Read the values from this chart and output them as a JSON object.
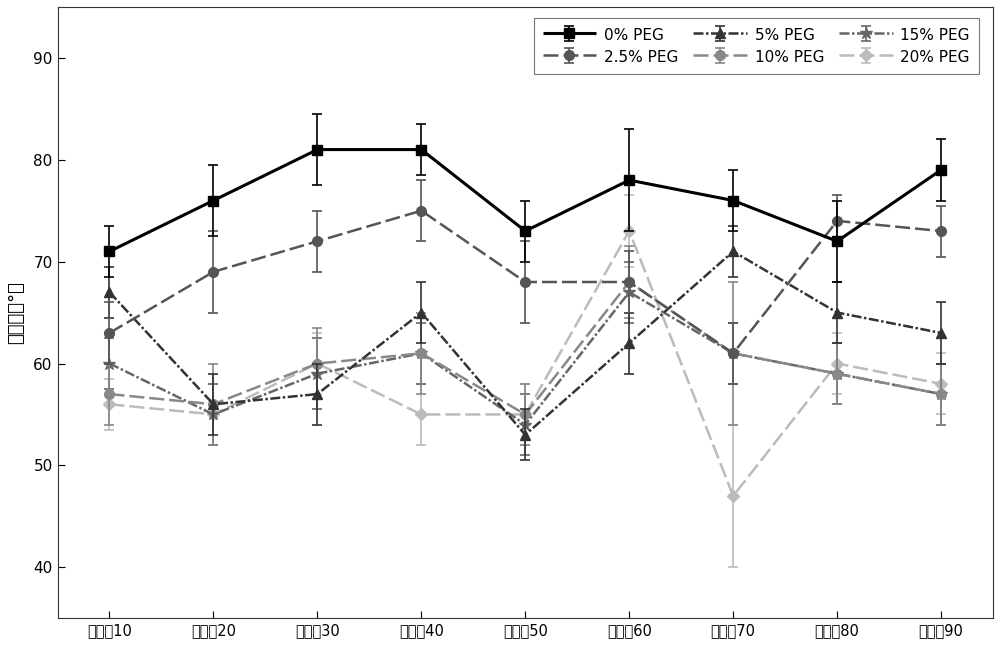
{
  "x_labels": [
    "乙烯基10",
    "乙烯基20",
    "乙烯基30",
    "乙烯基40",
    "乙烯基50",
    "乙烯基60",
    "乙烯基70",
    "乙烯基80",
    "乙烯基90"
  ],
  "x_values": [
    10,
    20,
    30,
    40,
    50,
    60,
    70,
    80,
    90
  ],
  "series": [
    {
      "label": "0% PEG",
      "color": "#000000",
      "linestyle": "solid",
      "marker": "s",
      "markersize": 7,
      "linewidth": 2.2,
      "y": [
        71,
        76,
        81,
        81,
        73,
        78,
        76,
        72,
        79
      ],
      "yerr": [
        2.5,
        3.5,
        3.5,
        2.5,
        3,
        5,
        3,
        4,
        3
      ]
    },
    {
      "label": "2.5% PEG",
      "color": "#555555",
      "linestyle": "dashed",
      "marker": "o",
      "markersize": 7,
      "linewidth": 1.8,
      "y": [
        63,
        69,
        72,
        75,
        68,
        68,
        61,
        74,
        73
      ],
      "yerr": [
        3,
        4,
        3,
        3,
        4,
        3,
        3,
        2.5,
        2.5
      ]
    },
    {
      "label": "5% PEG",
      "color": "#333333",
      "linestyle": "dashdot",
      "marker": "^",
      "markersize": 7,
      "linewidth": 1.8,
      "y": [
        67,
        56,
        57,
        65,
        53,
        62,
        71,
        65,
        63
      ],
      "yerr": [
        2.5,
        3,
        3,
        3,
        2.5,
        3,
        2.5,
        3,
        3
      ]
    },
    {
      "label": "10% PEG",
      "color": "#777777",
      "linestyle": "dashed",
      "marker": "o",
      "markersize": 7,
      "linewidth": 1.8,
      "y": [
        57,
        56,
        60,
        61,
        55,
        68,
        61,
        59,
        57
      ],
      "yerr": [
        3,
        4,
        3.5,
        4,
        3,
        3.5,
        7,
        3,
        3
      ]
    },
    {
      "label": "15% PEG",
      "color": "#555555",
      "linestyle": "dashdot",
      "marker": "*",
      "markersize": 9,
      "linewidth": 1.8,
      "y": [
        60,
        55,
        59,
        61,
        54,
        67,
        61,
        59,
        57
      ],
      "yerr": [
        2.5,
        3,
        3.5,
        3,
        3,
        3,
        3,
        3,
        3
      ]
    },
    {
      "label": "20% PEG",
      "color": "#aaaaaa",
      "linestyle": "dashed",
      "marker": "D",
      "markersize": 6,
      "linewidth": 1.8,
      "y": [
        56,
        55,
        60,
        55,
        55,
        73,
        47,
        60,
        58
      ],
      "yerr": [
        2.5,
        3,
        3,
        3,
        3,
        3.5,
        7,
        3,
        3
      ]
    }
  ],
  "ylabel": "接触角（°）",
  "ylim": [
    35,
    95
  ],
  "yticks": [
    40,
    50,
    60,
    70,
    80,
    90
  ],
  "figsize": [
    10.0,
    6.45
  ],
  "dpi": 100,
  "background_color": "#ffffff"
}
